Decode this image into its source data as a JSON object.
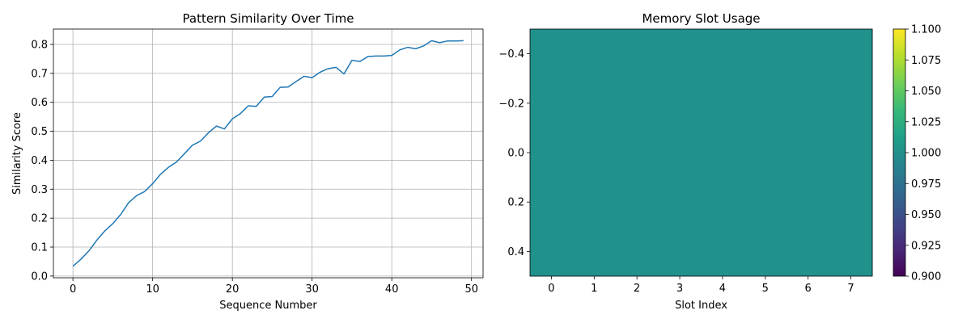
{
  "chart_data": [
    {
      "type": "line",
      "title": "Pattern Similarity Over Time",
      "xlabel": "Sequence Number",
      "ylabel": "Similarity Score",
      "xlim": [
        -2.45,
        51.45
      ],
      "ylim": [
        -0.006,
        0.853
      ],
      "grid": true,
      "xticks": [
        0,
        10,
        20,
        30,
        40,
        50
      ],
      "xtick_labels": [
        "0",
        "10",
        "20",
        "30",
        "40",
        "50"
      ],
      "yticks": [
        0.0,
        0.1,
        0.2,
        0.3,
        0.4,
        0.5,
        0.6,
        0.7,
        0.8
      ],
      "ytick_labels": [
        "0.0",
        "0.1",
        "0.2",
        "0.3",
        "0.4",
        "0.5",
        "0.6",
        "0.7",
        "0.8"
      ],
      "series": [
        {
          "name": "similarity",
          "color": "#1f77b4",
          "x": [
            0,
            1,
            2,
            3,
            4,
            5,
            6,
            7,
            8,
            9,
            10,
            11,
            12,
            13,
            14,
            15,
            16,
            17,
            18,
            19,
            20,
            21,
            22,
            23,
            24,
            25,
            26,
            27,
            28,
            29,
            30,
            31,
            32,
            33,
            34,
            35,
            36,
            37,
            38,
            39,
            40,
            41,
            42,
            43,
            44,
            45,
            46,
            47,
            48,
            49
          ],
          "values": [
            0.034,
            0.058,
            0.087,
            0.124,
            0.156,
            0.181,
            0.213,
            0.254,
            0.278,
            0.292,
            0.319,
            0.352,
            0.376,
            0.394,
            0.423,
            0.452,
            0.466,
            0.495,
            0.518,
            0.508,
            0.543,
            0.561,
            0.588,
            0.586,
            0.618,
            0.62,
            0.652,
            0.653,
            0.672,
            0.69,
            0.685,
            0.704,
            0.716,
            0.721,
            0.698,
            0.745,
            0.741,
            0.758,
            0.76,
            0.76,
            0.762,
            0.781,
            0.79,
            0.785,
            0.795,
            0.813,
            0.806,
            0.812,
            0.812,
            0.813
          ]
        }
      ]
    },
    {
      "type": "heatmap",
      "title": "Memory Slot Usage",
      "xlabel": "Slot Index",
      "ylabel": "",
      "grid": false,
      "xlim": [
        -0.5,
        7.5
      ],
      "ylim": [
        0.5,
        -0.5
      ],
      "xticks": [
        0,
        1,
        2,
        3,
        4,
        5,
        6,
        7
      ],
      "xtick_labels": [
        "0",
        "1",
        "2",
        "3",
        "4",
        "5",
        "6",
        "7"
      ],
      "yticks": [
        -0.4,
        -0.2,
        0.0,
        0.2,
        0.4
      ],
      "ytick_labels": [
        "−0.4",
        "−0.2",
        "0.0",
        "0.2",
        "0.4"
      ],
      "values": [
        [
          1,
          1,
          1,
          1,
          1,
          1,
          1,
          1
        ]
      ],
      "cell_color": "#21918c",
      "colorbar": {
        "colormap": "viridis",
        "range": [
          0.9,
          1.1
        ],
        "ticks": [
          0.9,
          0.925,
          0.95,
          0.975,
          1.0,
          1.025,
          1.05,
          1.075,
          1.1
        ],
        "tick_labels": [
          "0.900",
          "0.925",
          "0.950",
          "0.975",
          "1.000",
          "1.025",
          "1.050",
          "1.075",
          "1.100"
        ],
        "gradient_stops": [
          "#440154",
          "#482878",
          "#3e4989",
          "#31688e",
          "#26828e",
          "#1f9e89",
          "#35b779",
          "#6ece58",
          "#b5de2b",
          "#fde725"
        ]
      }
    }
  ]
}
